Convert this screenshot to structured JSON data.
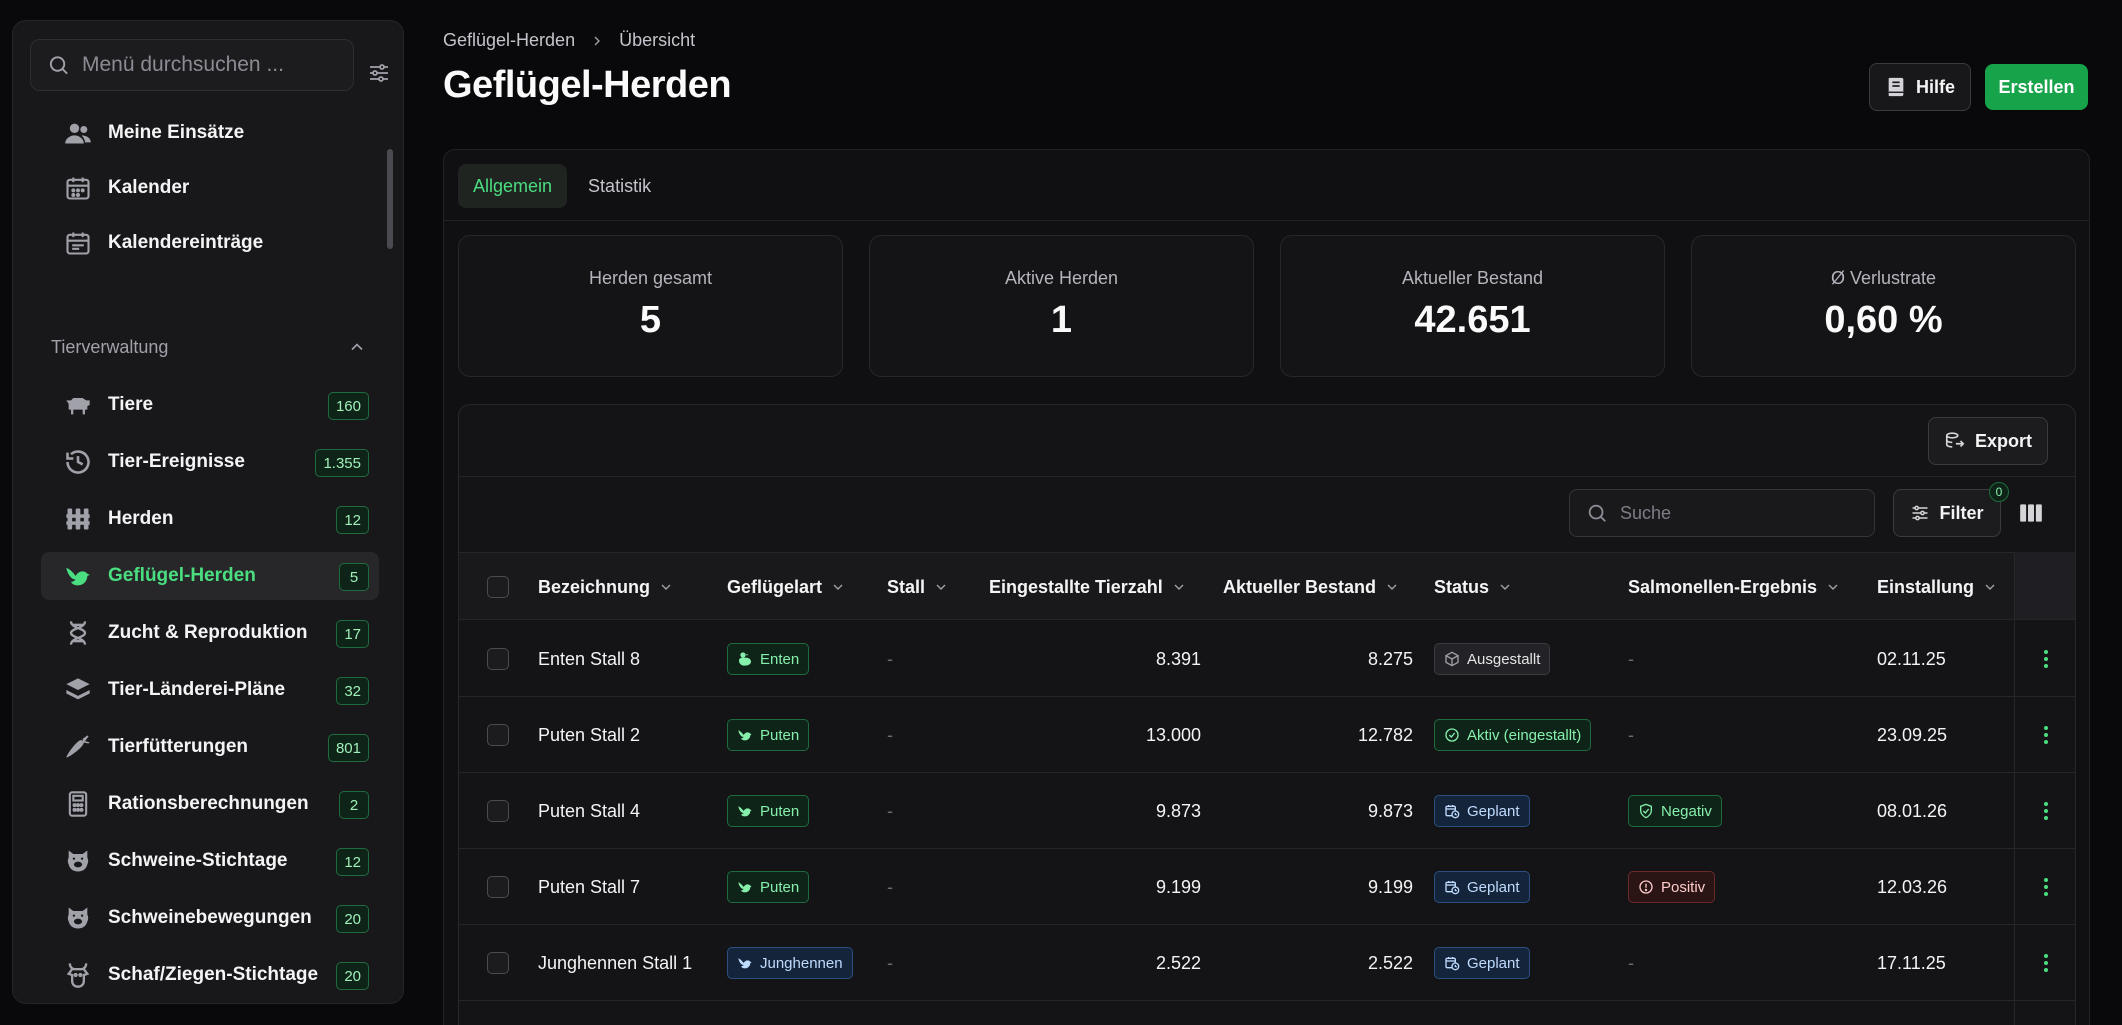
{
  "sidebar": {
    "search_placeholder": "Menü durchsuchen ...",
    "top_items": [
      {
        "label": "Meine Einsätze",
        "icon": "users-icon"
      },
      {
        "label": "Kalender",
        "icon": "calendar-icon"
      },
      {
        "label": "Kalendereinträge",
        "icon": "calendar-entries-icon"
      }
    ],
    "section_title": "Tierverwaltung",
    "items": [
      {
        "label": "Tiere",
        "badge": "160",
        "icon": "cow-icon"
      },
      {
        "label": "Tier-Ereignisse",
        "badge": "1.355",
        "icon": "history-icon"
      },
      {
        "label": "Herden",
        "badge": "12",
        "icon": "herd-icon"
      },
      {
        "label": "Geflügel-Herden",
        "badge": "5",
        "icon": "bird-icon",
        "active": true
      },
      {
        "label": "Zucht & Reproduktion",
        "badge": "17",
        "icon": "dna-icon"
      },
      {
        "label": "Tier-Länderei-Pläne",
        "badge": "32",
        "icon": "layers-icon"
      },
      {
        "label": "Tierfütterungen",
        "badge": "801",
        "icon": "carrot-icon"
      },
      {
        "label": "Rationsberechnungen",
        "badge": "2",
        "icon": "calculator-icon"
      },
      {
        "label": "Schweine-Stichtage",
        "badge": "12",
        "icon": "pig-icon"
      },
      {
        "label": "Schweinebewegungen",
        "badge": "20",
        "icon": "pig-move-icon"
      },
      {
        "label": "Schaf/Ziegen-Stichtage",
        "badge": "20",
        "icon": "goat-icon"
      }
    ]
  },
  "header": {
    "breadcrumb": [
      "Geflügel-Herden",
      "Übersicht"
    ],
    "title": "Geflügel-Herden",
    "help_label": "Hilfe",
    "create_label": "Erstellen"
  },
  "tabs": [
    {
      "label": "Allgemein",
      "active": true
    },
    {
      "label": "Statistik",
      "active": false
    }
  ],
  "stats": [
    {
      "label": "Herden gesamt",
      "value": "5"
    },
    {
      "label": "Aktive Herden",
      "value": "1"
    },
    {
      "label": "Aktueller Bestand",
      "value": "42.651"
    },
    {
      "label": "Ø Verlustrate",
      "value": "0,60 %"
    }
  ],
  "table": {
    "export_label": "Export",
    "search_placeholder": "Suche",
    "filter_label": "Filter",
    "filter_count": "0",
    "columns": [
      "Bezeichnung",
      "Geflügelart",
      "Stall",
      "Eingestallte Tierzahl",
      "Aktueller Bestand",
      "Status",
      "Salmonellen-Ergebnis",
      "Einstallung"
    ],
    "rows": [
      {
        "name": "Enten Stall 8",
        "type": "Enten",
        "type_icon": "duck-icon",
        "stall": "-",
        "count": "8.391",
        "current": "8.275",
        "status": "Ausgestallt",
        "status_kind": "gray",
        "status_icon": "box-icon",
        "salmonella": "-",
        "salmonella_kind": "none",
        "date": "02.11.25"
      },
      {
        "name": "Puten Stall 2",
        "type": "Puten",
        "type_icon": "bird-icon",
        "stall": "-",
        "count": "13.000",
        "current": "12.782",
        "status": "Aktiv (eingestallt)",
        "status_kind": "green",
        "status_icon": "check-circle-icon",
        "salmonella": "-",
        "salmonella_kind": "none",
        "date": "23.09.25"
      },
      {
        "name": "Puten Stall 4",
        "type": "Puten",
        "type_icon": "bird-icon",
        "stall": "-",
        "count": "9.873",
        "current": "9.873",
        "status": "Geplant",
        "status_kind": "blue",
        "status_icon": "calendar-clock-icon",
        "salmonella": "Negativ",
        "salmonella_kind": "green",
        "date": "08.01.26"
      },
      {
        "name": "Puten Stall 7",
        "type": "Puten",
        "type_icon": "bird-icon",
        "stall": "-",
        "count": "9.199",
        "current": "9.199",
        "status": "Geplant",
        "status_kind": "blue",
        "status_icon": "calendar-clock-icon",
        "salmonella": "Positiv",
        "salmonella_kind": "red",
        "date": "12.03.26"
      },
      {
        "name": "Junghennen Stall 1",
        "type": "Junghennen",
        "type_icon": "bird-icon",
        "type_kind": "blue",
        "stall": "-",
        "count": "2.522",
        "current": "2.522",
        "status": "Geplant",
        "status_kind": "blue",
        "status_icon": "calendar-clock-icon",
        "salmonella": "-",
        "salmonella_kind": "none",
        "date": "17.11.25"
      }
    ]
  },
  "colors": {
    "accent": "#16a34a",
    "accent_text": "#4ade80",
    "background": "#09090b"
  }
}
